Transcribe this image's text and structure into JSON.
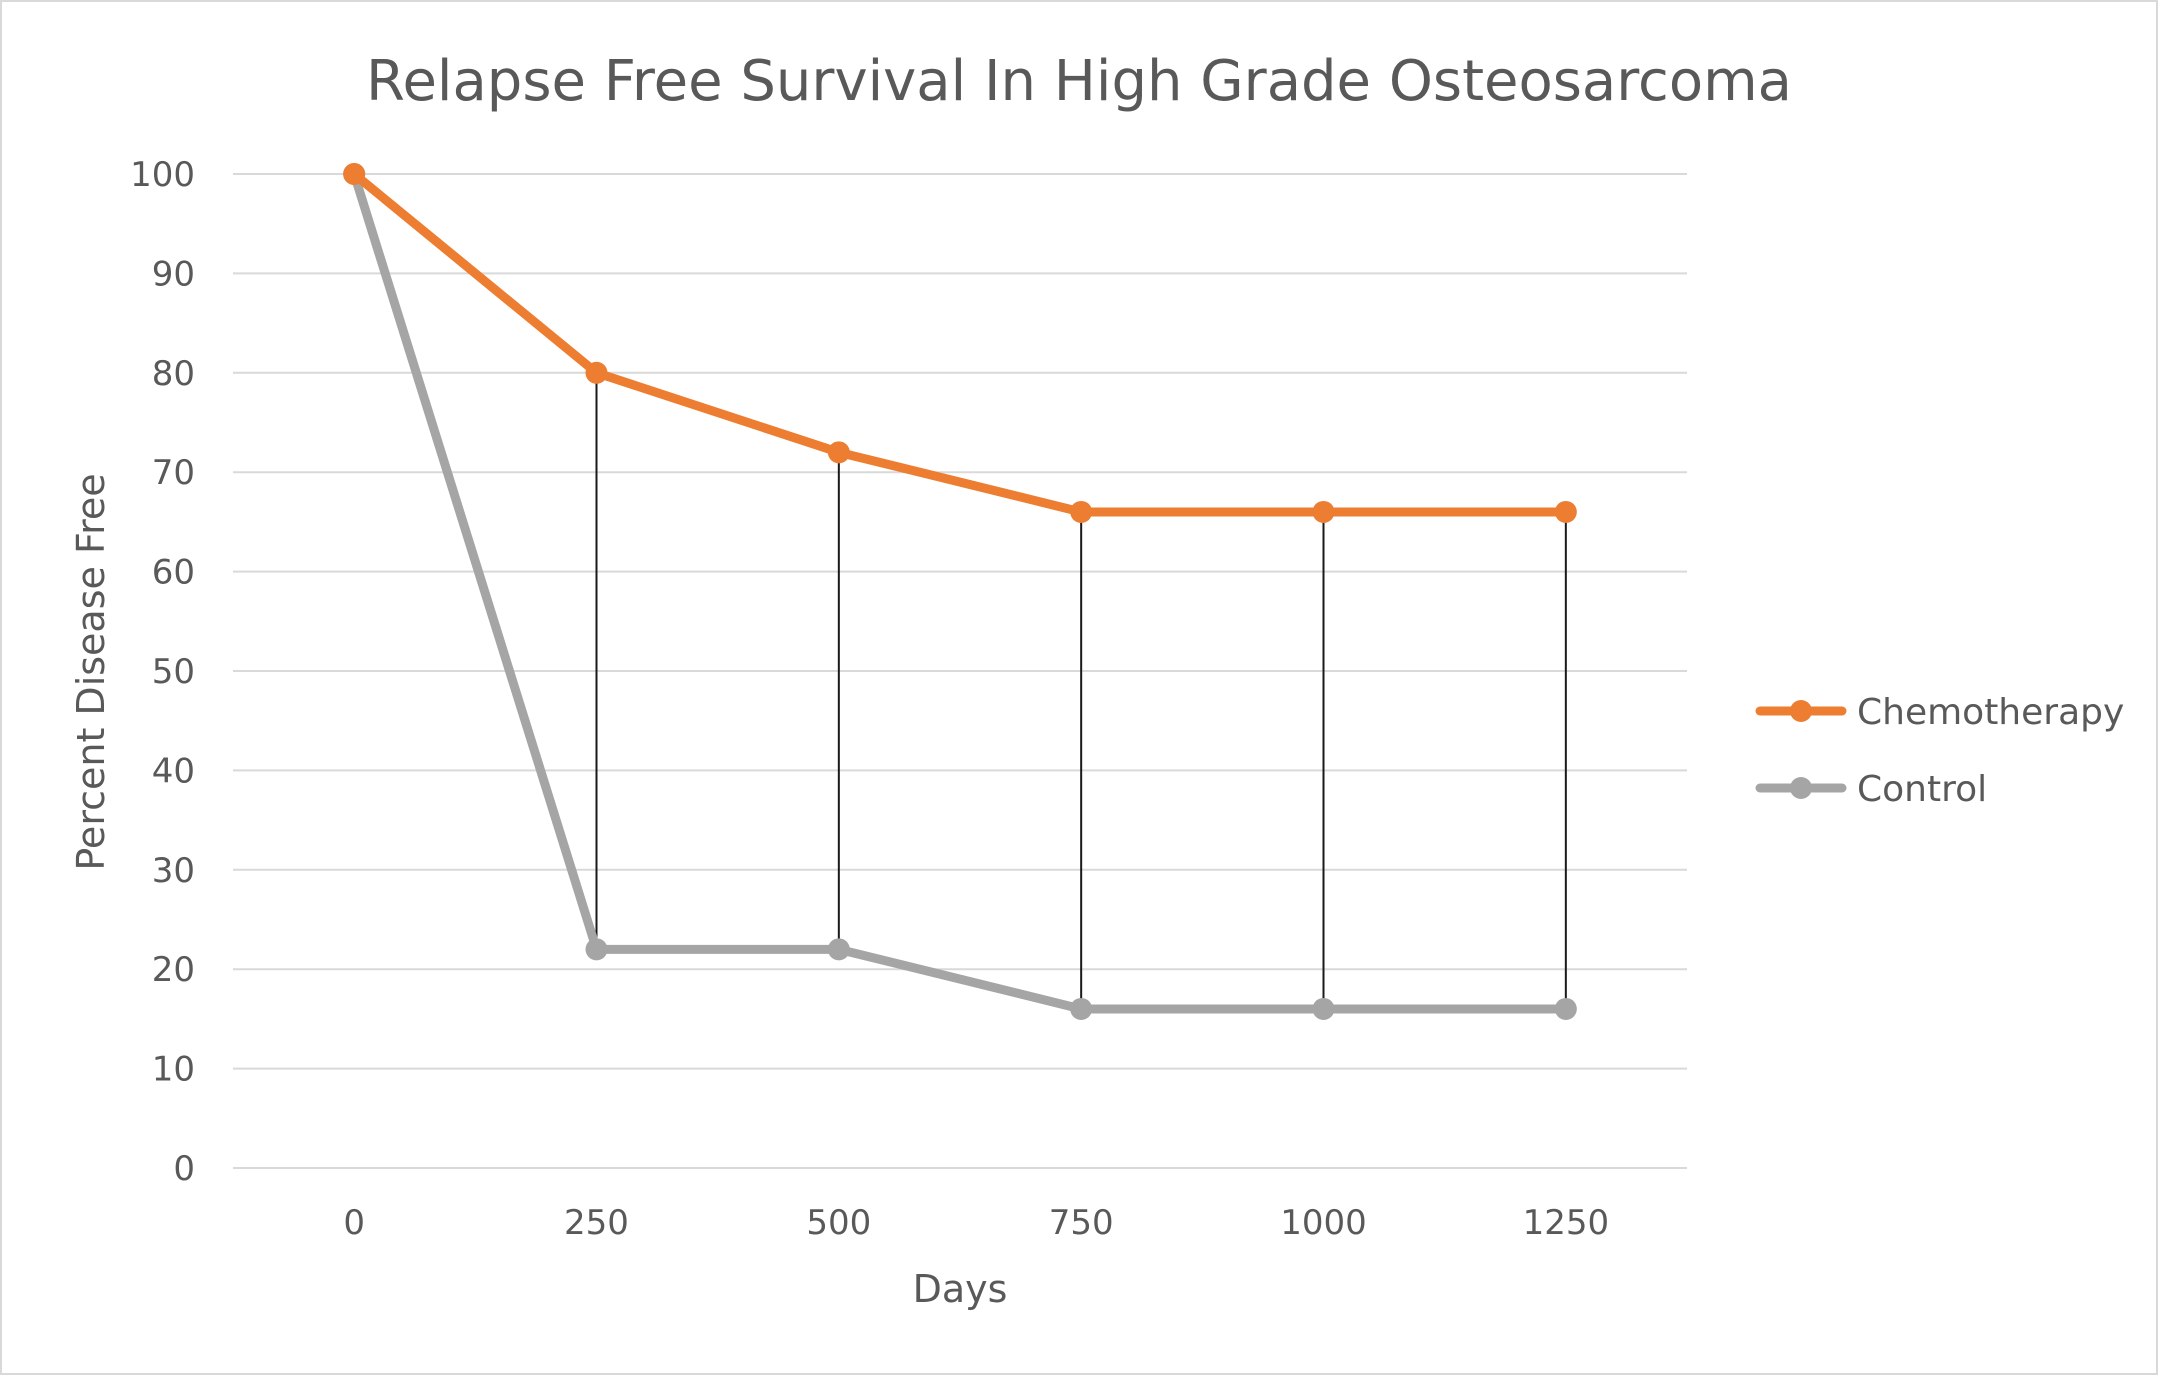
{
  "chart_data": {
    "type": "line",
    "title": "Relapse Free Survival In High Grade Osteosarcoma",
    "xlabel": "Days",
    "ylabel": "Percent Disease Free",
    "categories": [
      "0",
      "250",
      "500",
      "750",
      "1000",
      "1250"
    ],
    "ylim": [
      0,
      100
    ],
    "yticks": [
      0,
      10,
      20,
      30,
      40,
      50,
      60,
      70,
      80,
      90,
      100
    ],
    "grid": true,
    "legend_position": "right",
    "drop_lines": true,
    "series": [
      {
        "name": "Chemotherapy",
        "color": "#ED7D31",
        "values": [
          100,
          80,
          72,
          66,
          66,
          66
        ]
      },
      {
        "name": "Control",
        "color": "#A5A5A5",
        "values": [
          100,
          22,
          22,
          16,
          16,
          16
        ]
      }
    ]
  }
}
